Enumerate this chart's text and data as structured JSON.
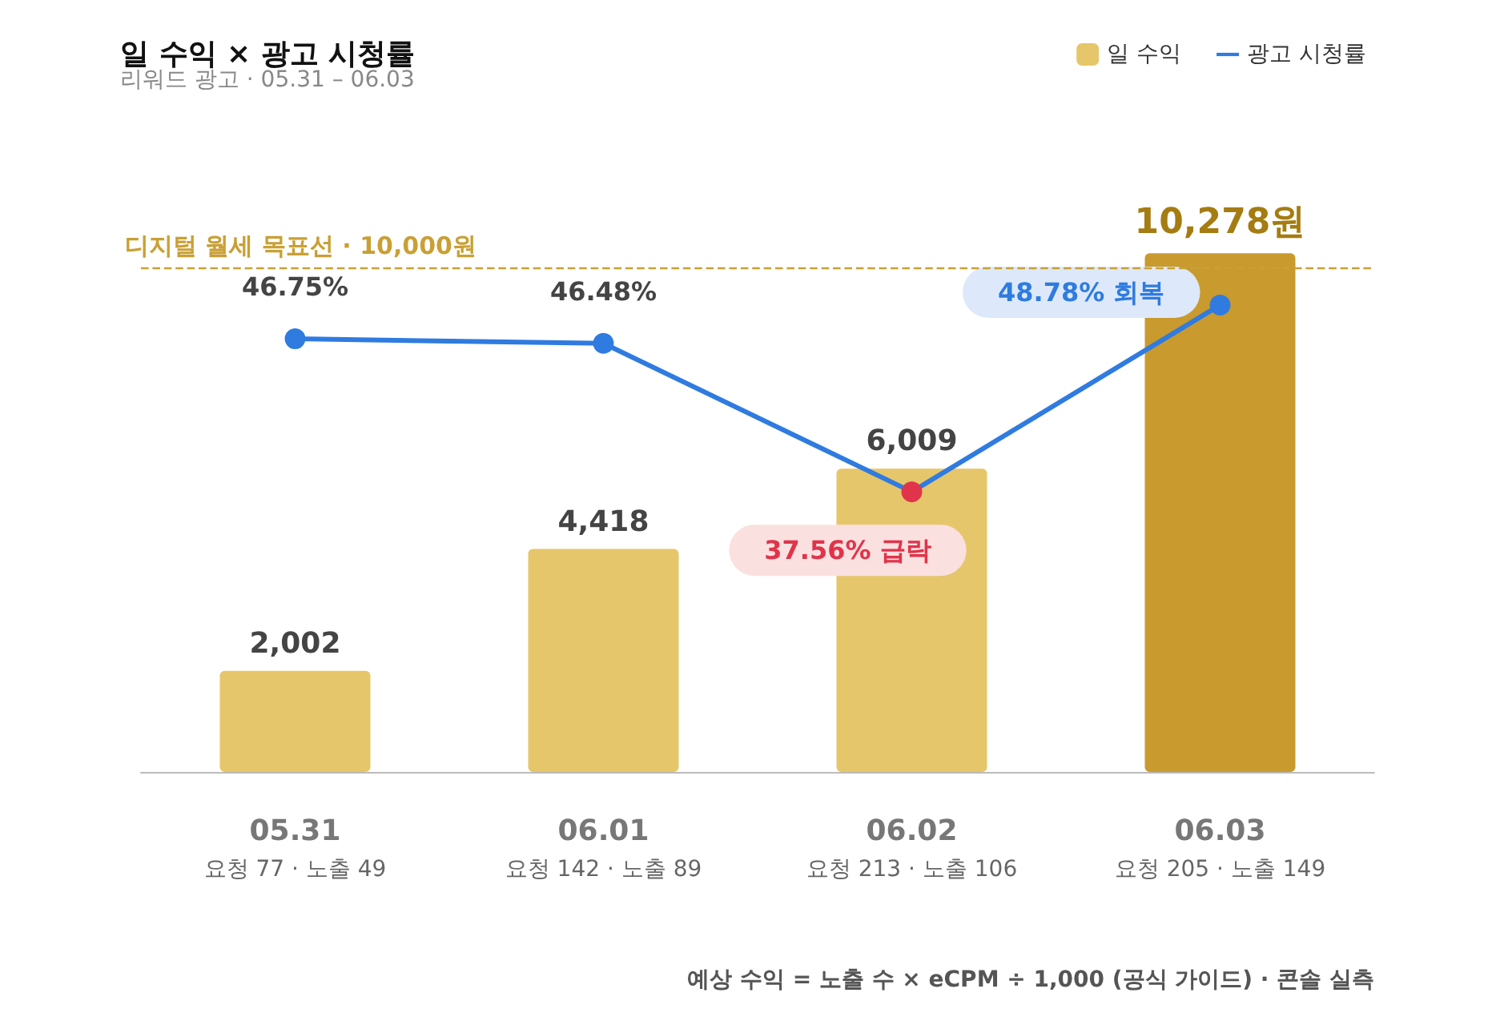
{
  "chart_data": {
    "type": "bar",
    "title": "일 수익 × 광고 시청률",
    "subtitle": "리워드 광고 · 05.31 – 06.03",
    "categories": [
      "05.31\n요청 77 · 노출 49",
      "06.01\n요청 142 · 노출 89",
      "06.02\n요청 213 · 노출 106",
      "06.03\n요청 205 · 노출 149"
    ],
    "series": [
      {
        "name": "일 수익",
        "color": "#e6c66a",
        "colors": [
          "#e6c66a",
          "#e6c66a",
          "#e6c66a",
          "#c99a2e"
        ],
        "values": [
          2002,
          4418,
          6009,
          10278
        ],
        "value_labels": [
          "2,002",
          "4,418",
          "6,009",
          "10,278원"
        ]
      },
      {
        "name": "광고 시청률",
        "type": "line",
        "axis": "y2",
        "color": "#2f7be0",
        "colors": [
          "#2f7be0",
          "#2f7be0",
          "#e0344a",
          "#2f7be0"
        ],
        "values": [
          46.75,
          46.48,
          37.56,
          48.78
        ],
        "value_labels": [
          "46.75%",
          "46.48%",
          "37.56% 급락",
          "48.78% 회복"
        ]
      }
    ],
    "ref_lines": [
      {
        "axis": "y",
        "value": 10000,
        "label": "디지털 월세 목표선 · 10,000원",
        "color": "#c9a035",
        "line_style": "dashed"
      }
    ],
    "annotations": [
      "예상 수익 = 노출 수 × eCPM ÷ 1,000 (공식 가이드) · 콘솔 실측"
    ],
    "legend": "top right",
    "marker": "circle",
    "line_style": "solid"
  }
}
